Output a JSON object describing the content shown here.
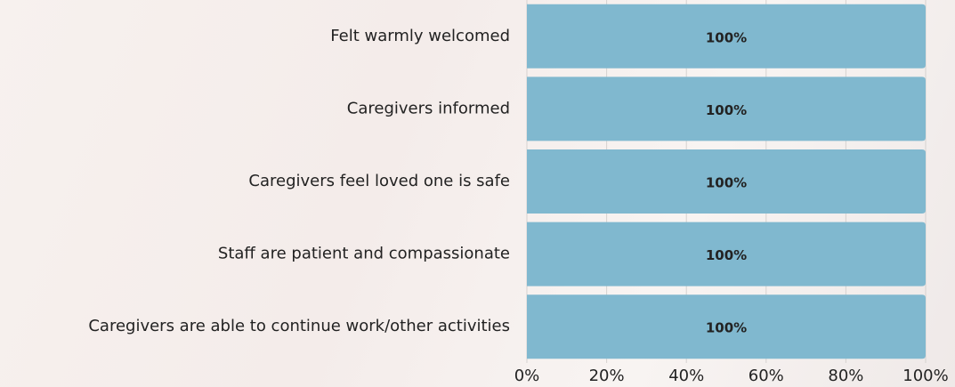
{
  "chart_data": {
    "type": "bar",
    "orientation": "horizontal",
    "categories": [
      "Felt warmly welcomed",
      "Caregivers informed",
      "Caregivers feel loved one is safe",
      "Staff are patient and compassionate",
      "Caregivers are able to continue work/other activities"
    ],
    "values": [
      100,
      100,
      100,
      100,
      100
    ],
    "value_labels": [
      "100%",
      "100%",
      "100%",
      "100%",
      "100%"
    ],
    "color": "#80b8cf",
    "xlim": [
      0,
      100
    ],
    "xticks": [
      {
        "value": 0,
        "label": "0%"
      },
      {
        "value": 20,
        "label": "20%"
      },
      {
        "value": 40,
        "label": "40%"
      },
      {
        "value": 60,
        "label": "60%"
      },
      {
        "value": 80,
        "label": "80%"
      },
      {
        "value": 100,
        "label": "100%"
      }
    ],
    "grid": true
  }
}
